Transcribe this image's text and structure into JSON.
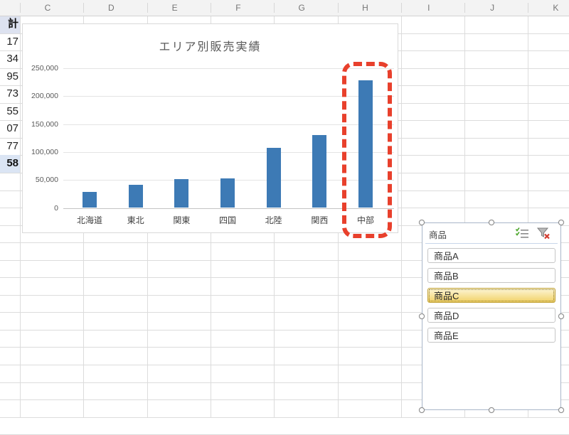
{
  "spreadsheet": {
    "column_headers": [
      "C",
      "D",
      "E",
      "F",
      "G",
      "H",
      "I",
      "J",
      "K"
    ],
    "left_column": {
      "header": "計",
      "values": [
        "17",
        "34",
        "95",
        "73",
        "55",
        "07",
        "77"
      ],
      "total": "58"
    }
  },
  "chart_data": {
    "type": "bar",
    "title": "エリア別販売実績",
    "categories": [
      "北海道",
      "東北",
      "関東",
      "四国",
      "北陸",
      "関西",
      "中部"
    ],
    "values": [
      28000,
      41000,
      52000,
      53000,
      107000,
      131000,
      229000
    ],
    "xlabel": "",
    "ylabel": "",
    "ylim": [
      0,
      250000
    ],
    "ytick_interval": 50000,
    "ytick_labels": [
      "0",
      "50,000",
      "100,000",
      "150,000",
      "200,000",
      "250,000"
    ],
    "grid": true,
    "legend": false,
    "bar_color": "#3d7ab5"
  },
  "annotation": {
    "shape": "dashed-rounded-rect",
    "color": "#e8402c",
    "target_category": "中部"
  },
  "slicer": {
    "title": "商品",
    "items": [
      {
        "label": "商品A",
        "selected": false
      },
      {
        "label": "商品B",
        "selected": false
      },
      {
        "label": "商品C",
        "selected": true
      },
      {
        "label": "商品D",
        "selected": false
      },
      {
        "label": "商品E",
        "selected": false
      }
    ],
    "icons": [
      {
        "name": "multi-select-icon",
        "check_color": "#4ea72e",
        "line_color": "#8a8a8a"
      },
      {
        "name": "clear-filter-icon",
        "funnel_color": "#8a8a8a",
        "x_color": "#d23b2e"
      }
    ],
    "selected_fill": "#f1d166"
  }
}
